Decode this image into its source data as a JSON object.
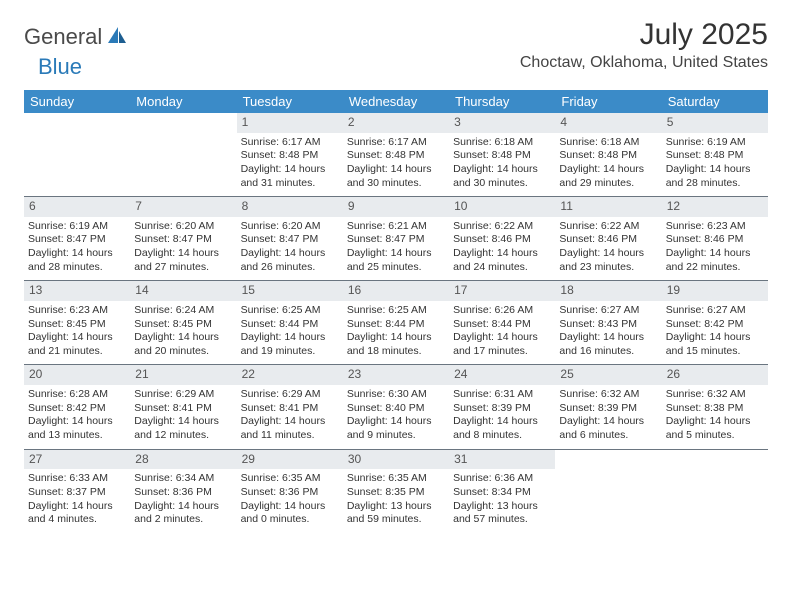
{
  "brand": {
    "text1": "General",
    "text2": "Blue"
  },
  "title": "July 2025",
  "location": "Choctaw, Oklahoma, United States",
  "colors": {
    "header_bg": "#3b8bc8",
    "header_text": "#ffffff",
    "daynum_bg": "#e8ebee",
    "row_border": "#6a7580",
    "body_text": "#333333"
  },
  "day_names": [
    "Sunday",
    "Monday",
    "Tuesday",
    "Wednesday",
    "Thursday",
    "Friday",
    "Saturday"
  ],
  "weeks": [
    [
      {
        "n": "",
        "empty": true
      },
      {
        "n": "",
        "empty": true
      },
      {
        "n": "1",
        "sr": "Sunrise: 6:17 AM",
        "ss": "Sunset: 8:48 PM",
        "dl": "Daylight: 14 hours and 31 minutes."
      },
      {
        "n": "2",
        "sr": "Sunrise: 6:17 AM",
        "ss": "Sunset: 8:48 PM",
        "dl": "Daylight: 14 hours and 30 minutes."
      },
      {
        "n": "3",
        "sr": "Sunrise: 6:18 AM",
        "ss": "Sunset: 8:48 PM",
        "dl": "Daylight: 14 hours and 30 minutes."
      },
      {
        "n": "4",
        "sr": "Sunrise: 6:18 AM",
        "ss": "Sunset: 8:48 PM",
        "dl": "Daylight: 14 hours and 29 minutes."
      },
      {
        "n": "5",
        "sr": "Sunrise: 6:19 AM",
        "ss": "Sunset: 8:48 PM",
        "dl": "Daylight: 14 hours and 28 minutes."
      }
    ],
    [
      {
        "n": "6",
        "sr": "Sunrise: 6:19 AM",
        "ss": "Sunset: 8:47 PM",
        "dl": "Daylight: 14 hours and 28 minutes."
      },
      {
        "n": "7",
        "sr": "Sunrise: 6:20 AM",
        "ss": "Sunset: 8:47 PM",
        "dl": "Daylight: 14 hours and 27 minutes."
      },
      {
        "n": "8",
        "sr": "Sunrise: 6:20 AM",
        "ss": "Sunset: 8:47 PM",
        "dl": "Daylight: 14 hours and 26 minutes."
      },
      {
        "n": "9",
        "sr": "Sunrise: 6:21 AM",
        "ss": "Sunset: 8:47 PM",
        "dl": "Daylight: 14 hours and 25 minutes."
      },
      {
        "n": "10",
        "sr": "Sunrise: 6:22 AM",
        "ss": "Sunset: 8:46 PM",
        "dl": "Daylight: 14 hours and 24 minutes."
      },
      {
        "n": "11",
        "sr": "Sunrise: 6:22 AM",
        "ss": "Sunset: 8:46 PM",
        "dl": "Daylight: 14 hours and 23 minutes."
      },
      {
        "n": "12",
        "sr": "Sunrise: 6:23 AM",
        "ss": "Sunset: 8:46 PM",
        "dl": "Daylight: 14 hours and 22 minutes."
      }
    ],
    [
      {
        "n": "13",
        "sr": "Sunrise: 6:23 AM",
        "ss": "Sunset: 8:45 PM",
        "dl": "Daylight: 14 hours and 21 minutes."
      },
      {
        "n": "14",
        "sr": "Sunrise: 6:24 AM",
        "ss": "Sunset: 8:45 PM",
        "dl": "Daylight: 14 hours and 20 minutes."
      },
      {
        "n": "15",
        "sr": "Sunrise: 6:25 AM",
        "ss": "Sunset: 8:44 PM",
        "dl": "Daylight: 14 hours and 19 minutes."
      },
      {
        "n": "16",
        "sr": "Sunrise: 6:25 AM",
        "ss": "Sunset: 8:44 PM",
        "dl": "Daylight: 14 hours and 18 minutes."
      },
      {
        "n": "17",
        "sr": "Sunrise: 6:26 AM",
        "ss": "Sunset: 8:44 PM",
        "dl": "Daylight: 14 hours and 17 minutes."
      },
      {
        "n": "18",
        "sr": "Sunrise: 6:27 AM",
        "ss": "Sunset: 8:43 PM",
        "dl": "Daylight: 14 hours and 16 minutes."
      },
      {
        "n": "19",
        "sr": "Sunrise: 6:27 AM",
        "ss": "Sunset: 8:42 PM",
        "dl": "Daylight: 14 hours and 15 minutes."
      }
    ],
    [
      {
        "n": "20",
        "sr": "Sunrise: 6:28 AM",
        "ss": "Sunset: 8:42 PM",
        "dl": "Daylight: 14 hours and 13 minutes."
      },
      {
        "n": "21",
        "sr": "Sunrise: 6:29 AM",
        "ss": "Sunset: 8:41 PM",
        "dl": "Daylight: 14 hours and 12 minutes."
      },
      {
        "n": "22",
        "sr": "Sunrise: 6:29 AM",
        "ss": "Sunset: 8:41 PM",
        "dl": "Daylight: 14 hours and 11 minutes."
      },
      {
        "n": "23",
        "sr": "Sunrise: 6:30 AM",
        "ss": "Sunset: 8:40 PM",
        "dl": "Daylight: 14 hours and 9 minutes."
      },
      {
        "n": "24",
        "sr": "Sunrise: 6:31 AM",
        "ss": "Sunset: 8:39 PM",
        "dl": "Daylight: 14 hours and 8 minutes."
      },
      {
        "n": "25",
        "sr": "Sunrise: 6:32 AM",
        "ss": "Sunset: 8:39 PM",
        "dl": "Daylight: 14 hours and 6 minutes."
      },
      {
        "n": "26",
        "sr": "Sunrise: 6:32 AM",
        "ss": "Sunset: 8:38 PM",
        "dl": "Daylight: 14 hours and 5 minutes."
      }
    ],
    [
      {
        "n": "27",
        "sr": "Sunrise: 6:33 AM",
        "ss": "Sunset: 8:37 PM",
        "dl": "Daylight: 14 hours and 4 minutes."
      },
      {
        "n": "28",
        "sr": "Sunrise: 6:34 AM",
        "ss": "Sunset: 8:36 PM",
        "dl": "Daylight: 14 hours and 2 minutes."
      },
      {
        "n": "29",
        "sr": "Sunrise: 6:35 AM",
        "ss": "Sunset: 8:36 PM",
        "dl": "Daylight: 14 hours and 0 minutes."
      },
      {
        "n": "30",
        "sr": "Sunrise: 6:35 AM",
        "ss": "Sunset: 8:35 PM",
        "dl": "Daylight: 13 hours and 59 minutes."
      },
      {
        "n": "31",
        "sr": "Sunrise: 6:36 AM",
        "ss": "Sunset: 8:34 PM",
        "dl": "Daylight: 13 hours and 57 minutes."
      },
      {
        "n": "",
        "empty": true
      },
      {
        "n": "",
        "empty": true
      }
    ]
  ]
}
